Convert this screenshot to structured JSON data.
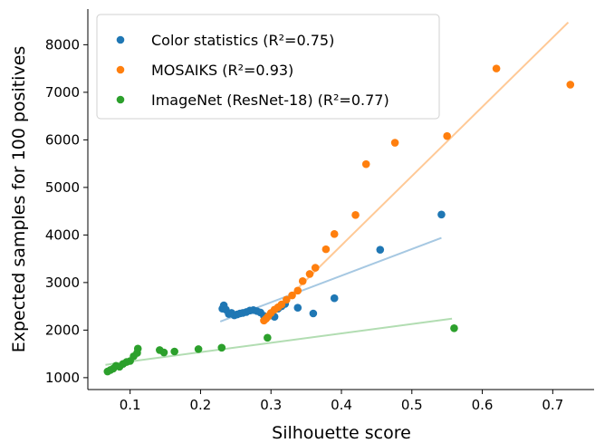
{
  "chart_data": {
    "type": "scatter",
    "xlabel": "Silhouette score",
    "ylabel": "Expected samples for 100 positives",
    "xlim": [
      0.04,
      0.76
    ],
    "ylim": [
      750,
      8750
    ],
    "x_ticks": [
      0.1,
      0.2,
      0.3,
      0.4,
      0.5,
      0.6,
      0.7
    ],
    "x_tick_labels": [
      "0.1",
      "0.2",
      "0.3",
      "0.4",
      "0.5",
      "0.6",
      "0.7"
    ],
    "y_ticks": [
      1000,
      2000,
      3000,
      4000,
      5000,
      6000,
      7000,
      8000
    ],
    "y_tick_labels": [
      "1000",
      "2000",
      "3000",
      "4000",
      "5000",
      "6000",
      "7000",
      "8000"
    ],
    "grid": false,
    "legend_position": "top-left",
    "series": [
      {
        "name": "Color statistics",
        "r2_label": "(R²=0.75)",
        "color": "#1f77b4",
        "fit_color": "#a6c8e2",
        "x": [
          0.231,
          0.233,
          0.236,
          0.24,
          0.244,
          0.248,
          0.252,
          0.256,
          0.26,
          0.265,
          0.27,
          0.275,
          0.28,
          0.285,
          0.29,
          0.295,
          0.3,
          0.305,
          0.31,
          0.315,
          0.32,
          0.338,
          0.36,
          0.39,
          0.455,
          0.542
        ],
        "y": [
          2450,
          2520,
          2430,
          2340,
          2360,
          2310,
          2330,
          2350,
          2360,
          2380,
          2410,
          2420,
          2400,
          2370,
          2300,
          2280,
          2310,
          2280,
          2450,
          2500,
          2550,
          2470,
          2350,
          2670,
          3690,
          4430
        ],
        "fit": [
          [
            0.228,
            2180
          ],
          [
            0.542,
            3940
          ]
        ]
      },
      {
        "name": "MOSAIKS",
        "r2_label": "(R²=0.93)",
        "color": "#ff7f0e",
        "fit_color": "#ffc996",
        "x": [
          0.29,
          0.293,
          0.296,
          0.3,
          0.305,
          0.31,
          0.315,
          0.322,
          0.33,
          0.338,
          0.345,
          0.355,
          0.363,
          0.378,
          0.39,
          0.42,
          0.435,
          0.476,
          0.55,
          0.62,
          0.725
        ],
        "y": [
          2200,
          2240,
          2290,
          2360,
          2430,
          2480,
          2540,
          2640,
          2730,
          2830,
          3030,
          3180,
          3310,
          3700,
          4020,
          4420,
          5490,
          5940,
          6080,
          7500,
          7160
        ],
        "fit": [
          [
            0.29,
            2180
          ],
          [
            0.722,
            8470
          ]
        ]
      },
      {
        "name": "ImageNet (ResNet-18)",
        "r2_label": "(R²=0.77)",
        "color": "#2ca02c",
        "fit_color": "#b2ddb2",
        "x": [
          0.068,
          0.072,
          0.076,
          0.08,
          0.085,
          0.09,
          0.095,
          0.1,
          0.105,
          0.11,
          0.111,
          0.142,
          0.148,
          0.163,
          0.197,
          0.23,
          0.295,
          0.56
        ],
        "y": [
          1130,
          1160,
          1190,
          1250,
          1230,
          1290,
          1330,
          1350,
          1450,
          1520,
          1610,
          1580,
          1530,
          1550,
          1600,
          1630,
          1840,
          2040
        ],
        "fit": [
          [
            0.065,
            1270
          ],
          [
            0.557,
            2240
          ]
        ]
      }
    ]
  }
}
